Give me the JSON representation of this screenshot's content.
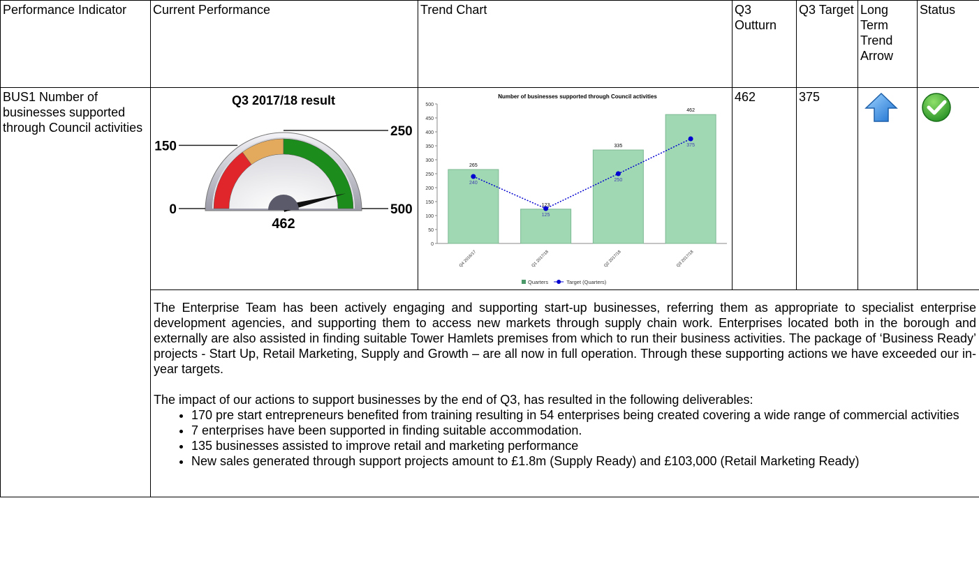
{
  "header": [
    "Performance Indicator",
    "Current Performance",
    "Trend Chart",
    "Q3 Outturn",
    "Q3 Target",
    "Long Term Trend Arrow",
    "Status"
  ],
  "indicator": "BUS1 Number of businesses supported through Council activities",
  "gauge": {
    "title": "Q3 2017/18 result",
    "ticks": [
      0,
      150,
      250,
      500
    ],
    "band_colors": [
      "#e0262b",
      "#e3a95c",
      "#1c8c1c"
    ],
    "value": 462
  },
  "chart_data": {
    "type": "bar",
    "title": "Number of businesses supported through Council activities",
    "categories": [
      "Q4 2016/17",
      "Q1 2017/18",
      "Q2 2017/18",
      "Q3 2017/18"
    ],
    "series": [
      {
        "name": "Quarters",
        "type": "bar",
        "color": "#9fd8b2",
        "values": [
          265,
          123,
          335,
          462
        ]
      },
      {
        "name": "Target (Quarters)",
        "type": "line",
        "color": "#0000d0",
        "values": [
          240,
          125,
          250,
          375
        ]
      }
    ],
    "ylim": [
      0,
      500
    ],
    "yticks": [
      0,
      50,
      100,
      150,
      200,
      250,
      300,
      350,
      400,
      450,
      500
    ],
    "legend": "bottom"
  },
  "outturn": 462,
  "target": 375,
  "commentary": {
    "paragraphs": [
      "The Enterprise Team has been actively engaging and supporting start-up businesses, referring them as appropriate to specialist enterprise development agencies, and supporting them to access new markets through supply chain work.  Enterprises located both in the borough and externally are also assisted in finding suitable Tower Hamlets premises from which to run their business activities. The package of ‘Business Ready’ projects - Start Up, Retail Marketing, Supply and Growth – are all now in full operation.  Through these supporting actions we have exceeded our in-year targets.",
      "The impact of our actions to support businesses by the end of Q3, has resulted in the following deliverables:"
    ],
    "bullets": [
      "170 pre start entrepreneurs benefited from training resulting in 54 enterprises being created covering a wide range of commercial activities",
      "7 enterprises have been supported in finding suitable accommodation.",
      "135 businesses assisted to improve  retail and marketing performance",
      "New sales generated through support projects amount to £1.8m (Supply Ready) and £103,000 (Retail Marketing Ready)"
    ]
  }
}
